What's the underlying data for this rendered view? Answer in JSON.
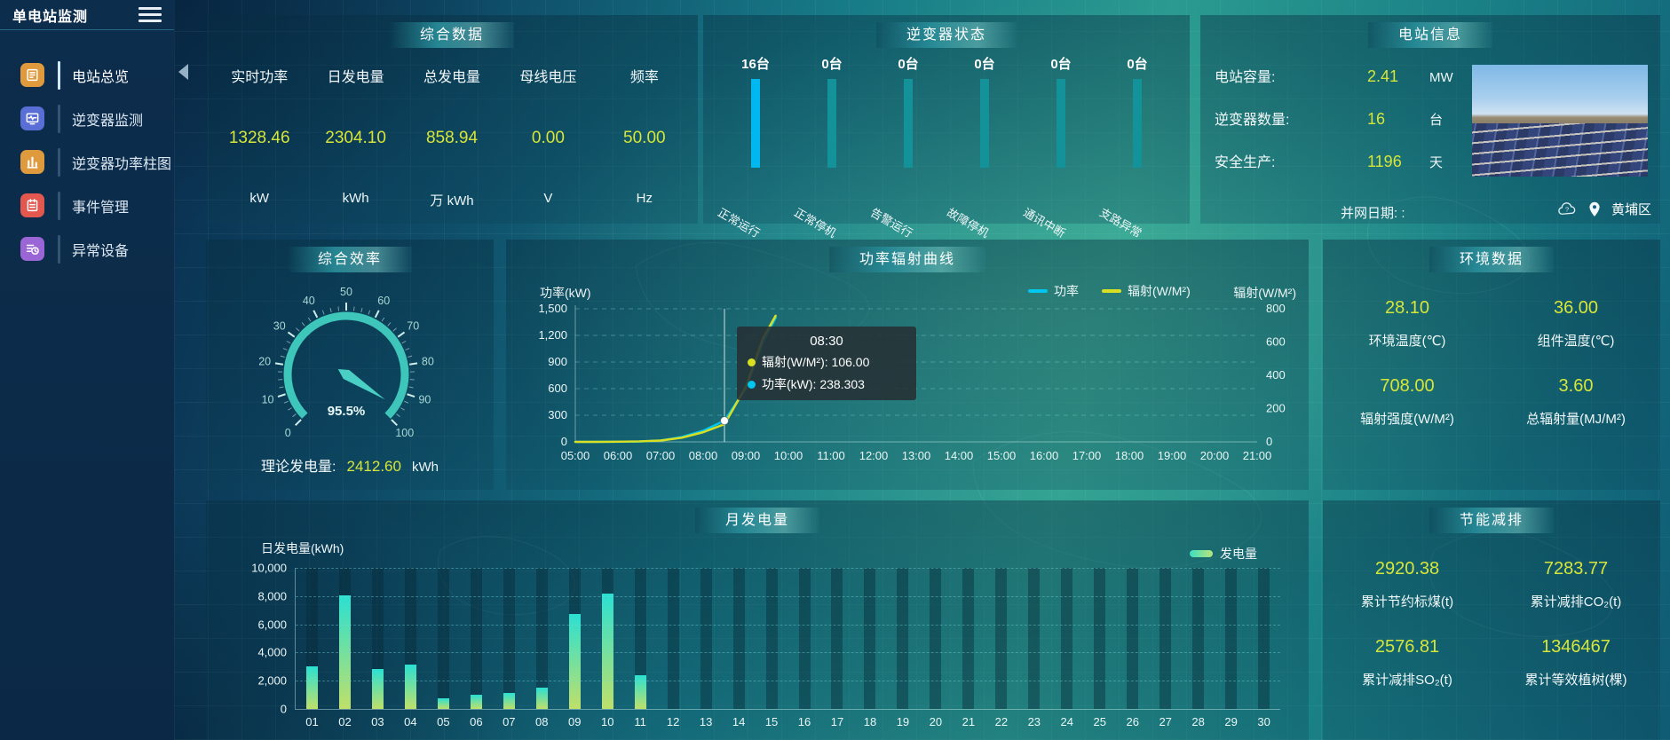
{
  "app": {
    "title": "单电站监测"
  },
  "sidebar": {
    "items": [
      {
        "label": "电站总览",
        "icon": "station-overview-icon",
        "color": "#e09a3e",
        "active": true
      },
      {
        "label": "逆变器监测",
        "icon": "inverter-monitor-icon",
        "color": "#5a6fd6",
        "active": false
      },
      {
        "label": "逆变器功率柱图",
        "icon": "inverter-power-bars-icon",
        "color": "#e09a3e",
        "active": false
      },
      {
        "label": "事件管理",
        "icon": "event-management-icon",
        "color": "#e2574e",
        "active": false
      },
      {
        "label": "异常设备",
        "icon": "abnormal-device-icon",
        "color": "#9a66d6",
        "active": false
      }
    ]
  },
  "summary": {
    "title": "综合数据",
    "metrics": [
      {
        "label": "实时功率",
        "value": "1328.46",
        "unit": "kW"
      },
      {
        "label": "日发电量",
        "value": "2304.10",
        "unit": "kWh"
      },
      {
        "label": "总发电量",
        "value": "858.94",
        "unit": "万 kWh"
      },
      {
        "label": "母线电压",
        "value": "0.00",
        "unit": "V"
      },
      {
        "label": "频率",
        "value": "50.00",
        "unit": "Hz"
      }
    ]
  },
  "inverter_status": {
    "title": "逆变器状态",
    "chart_data": {
      "type": "bar",
      "categories": [
        "正常运行",
        "正常停机",
        "告警运行",
        "故障停机",
        "通讯中断",
        "支路异常"
      ],
      "values": [
        16,
        0,
        0,
        0,
        0,
        0
      ],
      "unit": "台"
    },
    "items": [
      {
        "count": "16台",
        "label": "正常运行",
        "highlight": true
      },
      {
        "count": "0台",
        "label": "正常停机",
        "highlight": false
      },
      {
        "count": "0台",
        "label": "告警运行",
        "highlight": false
      },
      {
        "count": "0台",
        "label": "故障停机",
        "highlight": false
      },
      {
        "count": "0台",
        "label": "通讯中断",
        "highlight": false
      },
      {
        "count": "0台",
        "label": "支路异常",
        "highlight": false
      }
    ]
  },
  "station_info": {
    "title": "电站信息",
    "rows": [
      {
        "label": "电站容量:",
        "value": "2.41",
        "unit": "MW"
      },
      {
        "label": "逆变器数量:",
        "value": "16",
        "unit": "台"
      },
      {
        "label": "安全生产:",
        "value": "1196",
        "unit": "天"
      }
    ],
    "date_row": {
      "label": "并网日期:",
      "value": ":"
    },
    "location": "黄埔区"
  },
  "efficiency": {
    "title": "综合效率",
    "percent": 95.5,
    "value_label": "95.5%",
    "min": 0,
    "max": 100,
    "theoretical": {
      "label": "理论发电量:",
      "value": "2412.60",
      "unit": "kWh"
    }
  },
  "power_curve": {
    "title": "功率辐射曲线",
    "tooltip": {
      "time": "08:30",
      "rows": [
        {
          "dot_color": "#d9e021",
          "text": "辐射(W/M²): 106.00"
        },
        {
          "dot_color": "#00c6f0",
          "text": "功率(kW): 238.303"
        }
      ]
    },
    "chart_data": {
      "type": "line",
      "xrange": [
        5,
        21
      ],
      "xlabels": [
        "05:00",
        "06:00",
        "07:00",
        "08:00",
        "09:00",
        "10:00",
        "11:00",
        "12:00",
        "13:00",
        "14:00",
        "15:00",
        "16:00",
        "17:00",
        "18:00",
        "19:00",
        "20:00",
        "21:00"
      ],
      "ylabel_left": "功率(kW)",
      "ylim_left": [
        0,
        1500
      ],
      "yticks_left": [
        0,
        300,
        600,
        900,
        1200,
        1500
      ],
      "ylabel_right": "辐射(W/M²)",
      "ylim_right": [
        0,
        800
      ],
      "yticks_right": [
        0,
        200,
        400,
        600,
        800
      ],
      "crosshair_x": 8.5,
      "marker": {
        "x": 8.5,
        "value": 238.303,
        "axis": "left"
      },
      "series": [
        {
          "name": "功率",
          "axis": "left",
          "color": "#00c6f0",
          "points": [
            [
              5,
              0
            ],
            [
              5.5,
              0
            ],
            [
              6,
              1
            ],
            [
              6.5,
              4
            ],
            [
              7,
              15
            ],
            [
              7.5,
              55
            ],
            [
              8,
              125
            ],
            [
              8.5,
              238.303
            ],
            [
              9,
              600
            ],
            [
              9.4,
              1120
            ],
            [
              9.7,
              1400
            ]
          ]
        },
        {
          "name": "辐射(W/M²)",
          "axis": "right",
          "color": "#d9e021",
          "points": [
            [
              5,
              0
            ],
            [
              5.5,
              0
            ],
            [
              6,
              1
            ],
            [
              6.5,
              3
            ],
            [
              7,
              8
            ],
            [
              7.5,
              25
            ],
            [
              8,
              58
            ],
            [
              8.5,
              106
            ],
            [
              9,
              330
            ],
            [
              9.4,
              620
            ],
            [
              9.7,
              758
            ]
          ]
        }
      ]
    }
  },
  "environment": {
    "title": "环境数据",
    "items": [
      {
        "value": "28.10",
        "label": "环境温度(℃)"
      },
      {
        "value": "36.00",
        "label": "组件温度(℃)"
      },
      {
        "value": "708.00",
        "label": "辐射强度(W/M²)"
      },
      {
        "value": "3.60",
        "label": "总辐射量(MJ/M²)"
      }
    ]
  },
  "monthly": {
    "title": "月发电量",
    "chart_data": {
      "type": "bar",
      "ylabel": "日发电量(kWh)",
      "legend": "发电量",
      "ylim": [
        0,
        10000
      ],
      "yticks": [
        0,
        2000,
        4000,
        6000,
        8000,
        10000
      ],
      "categories": [
        "01",
        "02",
        "03",
        "04",
        "05",
        "06",
        "07",
        "08",
        "09",
        "10",
        "11",
        "12",
        "13",
        "14",
        "15",
        "16",
        "17",
        "18",
        "19",
        "20",
        "21",
        "22",
        "23",
        "24",
        "25",
        "26",
        "27",
        "28",
        "29",
        "30"
      ],
      "values": [
        3050,
        8020,
        2820,
        3130,
        760,
        990,
        1150,
        1530,
        6720,
        8170,
        2370,
        0,
        0,
        0,
        0,
        0,
        0,
        0,
        0,
        0,
        0,
        0,
        0,
        0,
        0,
        0,
        0,
        0,
        0,
        0
      ]
    }
  },
  "savings": {
    "title": "节能减排",
    "items": [
      {
        "value": "2920.38",
        "label": "累计节约标煤(t)"
      },
      {
        "value": "7283.77",
        "label": "累计减排CO₂(t)"
      },
      {
        "value": "2576.81",
        "label": "累计减排SO₂(t)"
      },
      {
        "value": "1346467",
        "label": "累计等效植树(棵)"
      }
    ]
  },
  "colors": {
    "value_yellow": "#d6e539",
    "inv_bar_highlight": "#00b7ef",
    "inv_bar_normal": "#13929a",
    "gauge": "#3ec6bb",
    "gauge_needle": "#49cfc4",
    "monthly_bar_top": "#2be0d2",
    "monthly_bar_bottom": "#bfe06a"
  }
}
